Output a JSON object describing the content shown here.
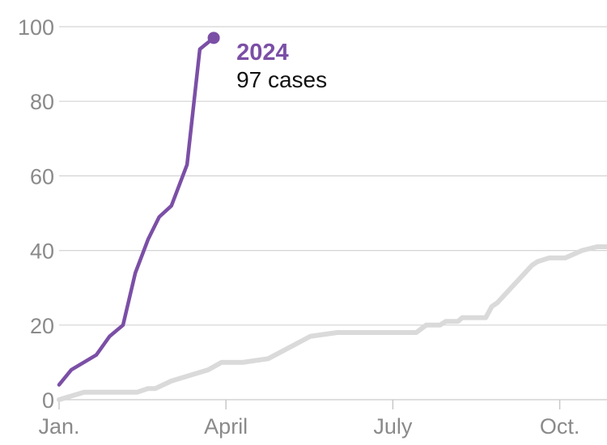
{
  "colors": {
    "highlight": "#7b4fa6",
    "baseline": "#dadada",
    "grid": "#d4d4d4",
    "axis_text": "#8a8a8a"
  },
  "annotation": {
    "title": "2024",
    "subtitle": "97 cases"
  },
  "chart_data": {
    "type": "line",
    "title": "",
    "xlabel": "",
    "ylabel": "",
    "ylim": [
      0,
      100
    ],
    "yticks": [
      0,
      20,
      40,
      60,
      80,
      100
    ],
    "ytick_labels": [
      "0",
      "20",
      "40",
      "60",
      "80",
      "100"
    ],
    "xlim": [
      0,
      9.85
    ],
    "xticks": [
      0,
      3,
      6,
      9
    ],
    "xtick_labels": [
      "Jan.",
      "April",
      "July",
      "Oct."
    ],
    "grid": true,
    "series": [
      {
        "name": "",
        "color": "#dadada",
        "x": [
          0,
          0.45,
          0.93,
          1.4,
          1.6,
          1.73,
          2.02,
          2.68,
          2.92,
          3.3,
          3.76,
          4.52,
          5.0,
          5.15,
          6.42,
          6.6,
          6.85,
          6.95,
          7.17,
          7.25,
          7.34,
          7.67,
          7.78,
          7.88,
          8.5,
          8.6,
          8.81,
          9.0,
          9.1,
          9.4,
          9.67,
          9.85
        ],
        "y": [
          0,
          2,
          2,
          2,
          3,
          3,
          5,
          8,
          10,
          10,
          11,
          17,
          18,
          18,
          18,
          20,
          20,
          21,
          21,
          22,
          22,
          22,
          25,
          26,
          36,
          37,
          38,
          38,
          38,
          40,
          41,
          41
        ]
      },
      {
        "name": "2024",
        "color": "#7b4fa6",
        "x": [
          0,
          0.22,
          0.67,
          0.91,
          1.15,
          1.37,
          1.6,
          1.8,
          2.02,
          2.3,
          2.53,
          2.78
        ],
        "y": [
          4,
          8,
          12,
          17,
          20,
          34,
          43,
          49,
          52,
          63,
          94,
          97
        ]
      }
    ]
  }
}
